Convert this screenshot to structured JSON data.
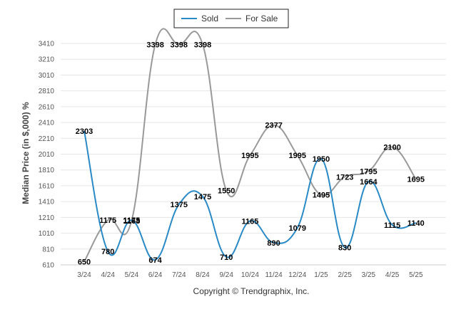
{
  "legend": [
    {
      "label": "Sold",
      "color": "#2a8ac6"
    },
    {
      "label": "For Sale",
      "color": "#999999"
    }
  ],
  "credit": "Copyright © Trendgraphix, Inc.",
  "chart_data": {
    "type": "line",
    "categories": [
      "3/24",
      "4/24",
      "5/24",
      "6/24",
      "7/24",
      "8/24",
      "9/24",
      "10/24",
      "11/24",
      "12/24",
      "1/25",
      "2/25",
      "3/25",
      "4/25",
      "5/25"
    ],
    "series": [
      {
        "name": "Sold",
        "color": "#2a8ac6",
        "values": [
          2303,
          780,
          1175,
          674,
          1375,
          1475,
          710,
          1165,
          890,
          1079,
          1950,
          830,
          1664,
          1115,
          1140
        ]
      },
      {
        "name": "For Sale",
        "color": "#999999",
        "values": [
          650,
          1175,
          1168,
          3398,
          3398,
          3398,
          1550,
          1995,
          2377,
          1995,
          1495,
          1723,
          1795,
          2100,
          1695
        ]
      }
    ],
    "data_labels": {
      "Sold": [
        "2303",
        "780",
        "1175",
        "674",
        "1375",
        "1475",
        "710",
        "1165",
        "890",
        "1079",
        "1950",
        "830",
        "1664",
        "1115",
        "1140"
      ],
      "For Sale": [
        "650",
        "1175",
        "1168",
        "3398",
        "3398",
        "3398",
        "1550",
        "1995",
        "2377",
        "1995",
        "1495",
        "1723",
        "1795",
        "2100",
        "1695"
      ]
    },
    "ylabel": "Median Price (in $,000) %",
    "ylim": [
      610,
      3410
    ],
    "yticks": [
      610,
      810,
      1010,
      1210,
      1410,
      1610,
      1810,
      2010,
      2210,
      2410,
      2610,
      2810,
      3010,
      3210,
      3410
    ],
    "grid": true,
    "smooth": true,
    "legend_position": "top-center"
  }
}
